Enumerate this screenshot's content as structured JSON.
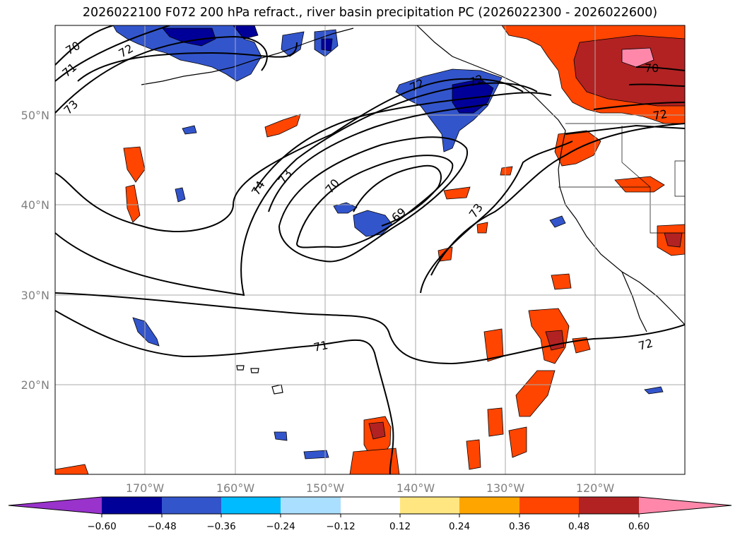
{
  "title": "2026022100 F072 200 hPa refract., river basin precipitation PC (2026022300 - 2026022600)",
  "map": {
    "lon_range": [
      -180,
      -110
    ],
    "lat_range": [
      10,
      60
    ],
    "lon_ticks": [
      {
        "value": -170,
        "label": "170°W"
      },
      {
        "value": -160,
        "label": "160°W"
      },
      {
        "value": -150,
        "label": "150°W"
      },
      {
        "value": -140,
        "label": "140°W"
      },
      {
        "value": -130,
        "label": "130°W"
      },
      {
        "value": -120,
        "label": "120°W"
      }
    ],
    "lat_ticks": [
      {
        "value": 20,
        "label": "20°N"
      },
      {
        "value": 30,
        "label": "30°N"
      },
      {
        "value": 40,
        "label": "40°N"
      },
      {
        "value": 50,
        "label": "50°N"
      }
    ],
    "contour_labels": [
      "70",
      "71",
      "72",
      "73",
      "72",
      "74",
      "73",
      "70",
      "69",
      "73",
      "72",
      "71",
      "72",
      "70",
      "72"
    ]
  },
  "colorbar": {
    "colors": [
      "#9933cc",
      "#000099",
      "#3355cc",
      "#00bbff",
      "#aadfff",
      "#ffffff",
      "#ffe680",
      "#ffa500",
      "#ff4500",
      "#b22222",
      "#ff88aa"
    ],
    "tick_labels": [
      "−0.60",
      "−0.48",
      "−0.36",
      "−0.24",
      "−0.12",
      "0.12",
      "0.24",
      "0.36",
      "0.48",
      "0.60"
    ]
  }
}
